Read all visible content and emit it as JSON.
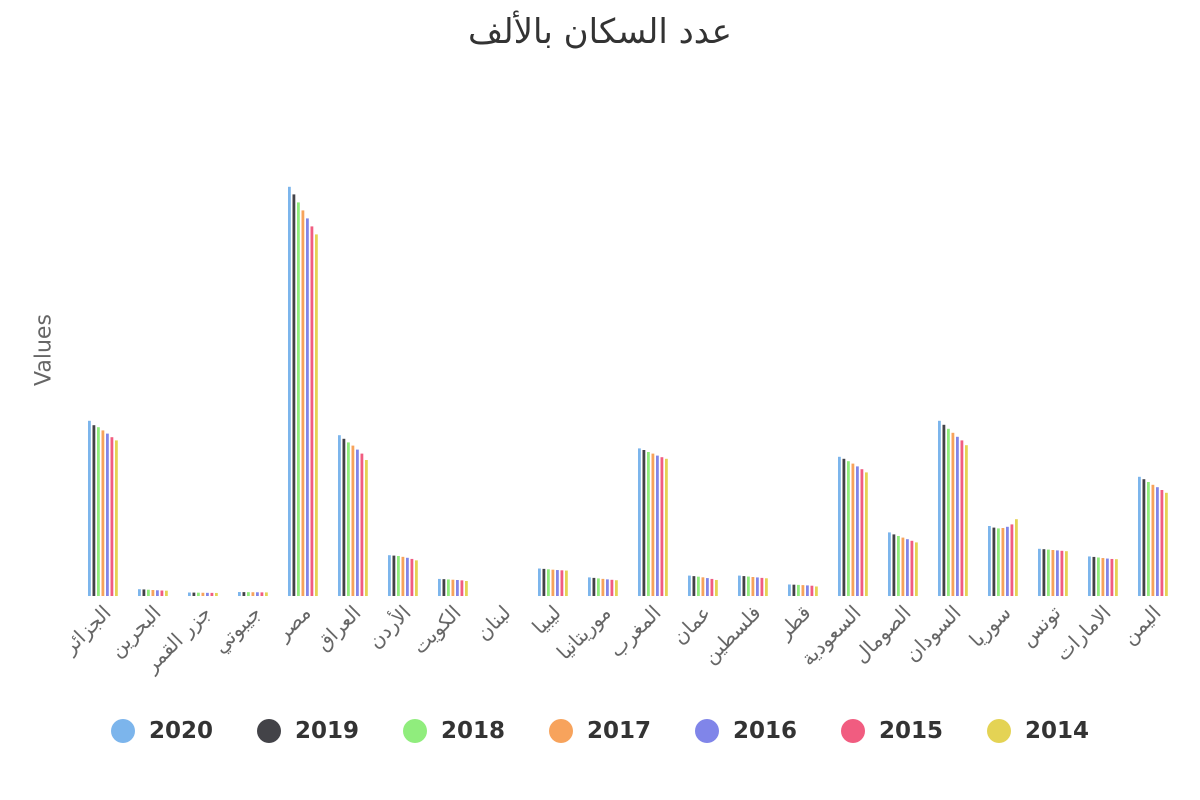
{
  "chart_data": {
    "type": "bar",
    "title": "عدد السكان بالألف",
    "ylabel": "Values",
    "xlabel": "",
    "grid": false,
    "legend_position": "bottom",
    "ylim": [
      0,
      110000
    ],
    "categories": [
      "الجزائر",
      "البحرين",
      "جزر القمر",
      "جيبوتي",
      "مصر",
      "العراق",
      "الأردن",
      "الكويت",
      "لبنان",
      "ليبيا",
      "موريتانيا",
      "المغرب",
      "عمان",
      "فلسطين",
      "قطر",
      "السعودية",
      "الصومال",
      "السودان",
      "سوريا",
      "تونس",
      "الامارات",
      "اليمن"
    ],
    "series": [
      {
        "name": "2020",
        "color": "#7cb5ec",
        "values": [
          43800,
          1700,
          870,
          990,
          102300,
          40200,
          10200,
          4270,
          0,
          6870,
          4650,
          36900,
          5100,
          5100,
          2880,
          34800,
          15900,
          43800,
          17500,
          11800,
          9890,
          29800
        ]
      },
      {
        "name": "2019",
        "color": "#434348",
        "values": [
          42700,
          1640,
          850,
          970,
          100400,
          39300,
          10100,
          4210,
          0,
          6780,
          4530,
          36500,
          4970,
          4980,
          2830,
          34300,
          15400,
          42800,
          17100,
          11700,
          9770,
          29200
        ]
      },
      {
        "name": "2018",
        "color": "#90ed7d",
        "values": [
          42200,
          1570,
          830,
          960,
          98400,
          38400,
          10000,
          4140,
          0,
          6680,
          4400,
          36000,
          4830,
          4860,
          2780,
          33700,
          15000,
          41800,
          16900,
          11600,
          9630,
          28500
        ]
      },
      {
        "name": "2017",
        "color": "#f7a35c",
        "values": [
          41400,
          1500,
          810,
          940,
          96400,
          37600,
          9790,
          4070,
          0,
          6580,
          4280,
          35600,
          4670,
          4750,
          2720,
          33100,
          14600,
          40800,
          17000,
          11500,
          9490,
          27800
        ]
      },
      {
        "name": "2016",
        "color": "#8085e9",
        "values": [
          40600,
          1430,
          790,
          930,
          94400,
          36600,
          9550,
          4000,
          0,
          6490,
          4160,
          35100,
          4480,
          4640,
          2650,
          32400,
          14200,
          39800,
          17300,
          11400,
          9360,
          27200
        ]
      },
      {
        "name": "2015",
        "color": "#f15c80",
        "values": [
          39700,
          1370,
          780,
          910,
          92400,
          35600,
          9270,
          3910,
          0,
          6420,
          4050,
          34700,
          4270,
          4530,
          2570,
          31700,
          13800,
          38900,
          17900,
          11300,
          9260,
          26500
        ]
      },
      {
        "name": "2014",
        "color": "#e4d354",
        "values": [
          38900,
          1330,
          760,
          900,
          90400,
          34000,
          8910,
          3750,
          0,
          6360,
          3940,
          34300,
          4010,
          4430,
          2380,
          30900,
          13400,
          37700,
          19200,
          11200,
          9200,
          25800
        ]
      }
    ]
  }
}
